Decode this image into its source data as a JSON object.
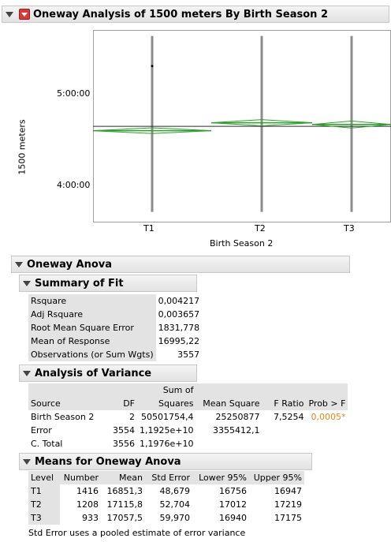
{
  "report": {
    "title": "Oneway Analysis of 1500 meters By Birth Season 2"
  },
  "chart_data": {
    "type": "scatter",
    "ylabel": "1500 meters",
    "xlabel": "Birth Season 2",
    "categories": [
      "T1",
      "T2",
      "T3"
    ],
    "y_ticks": [
      "5:00:00",
      "4:00:00"
    ],
    "ylim_seconds": [
      13800,
      20200
    ],
    "tick_values_seconds": [
      18000,
      14400
    ],
    "grand_mean": 16995.22,
    "means": [
      16851.3,
      17115.8,
      17057.5
    ],
    "ci_lower": [
      16756,
      17012,
      16940
    ],
    "ci_upper": [
      16947,
      17219,
      17175
    ],
    "point_color": "#2e9e2e"
  },
  "anova": {
    "title": "Oneway Anova",
    "summary_of_fit": {
      "title": "Summary of Fit",
      "rows": [
        {
          "label": "Rsquare",
          "value": "0,004217"
        },
        {
          "label": "Adj Rsquare",
          "value": "0,003657"
        },
        {
          "label": "Root Mean Square Error",
          "value": "1831,778"
        },
        {
          "label": "Mean of Response",
          "value": "16995,22"
        },
        {
          "label": "Observations (or Sum Wgts)",
          "value": "3557"
        }
      ]
    },
    "analysis_of_variance": {
      "title": "Analysis of Variance",
      "headers": {
        "source": "Source",
        "df": "DF",
        "ss_top": "Sum of",
        "ss_bottom": "Squares",
        "ms": "Mean Square",
        "f": "F Ratio",
        "p": "Prob > F"
      },
      "rows": [
        {
          "source": "Birth Season 2",
          "df": "2",
          "ss": "50501754,4",
          "ms": "25250877",
          "f": "7,5254",
          "p": "0,0005*"
        },
        {
          "source": "Error",
          "df": "3554",
          "ss": "1,1925e+10",
          "ms": "3355412,1",
          "f": "",
          "p": ""
        },
        {
          "source": "C. Total",
          "df": "3556",
          "ss": "1,1976e+10",
          "ms": "",
          "f": "",
          "p": ""
        }
      ],
      "p_color": "#e08a1e"
    },
    "means": {
      "title": "Means for Oneway Anova",
      "headers": {
        "level": "Level",
        "number": "Number",
        "mean": "Mean",
        "se": "Std Error",
        "lower": "Lower 95%",
        "upper": "Upper 95%"
      },
      "rows": [
        {
          "level": "T1",
          "number": "1416",
          "mean": "16851,3",
          "se": "48,679",
          "lower": "16756",
          "upper": "16947"
        },
        {
          "level": "T2",
          "number": "1208",
          "mean": "17115,8",
          "se": "52,704",
          "lower": "17012",
          "upper": "17219"
        },
        {
          "level": "T3",
          "number": "933",
          "mean": "17057,5",
          "se": "59,970",
          "lower": "16940",
          "upper": "17175"
        }
      ],
      "footnote": "Std Error uses a pooled estimate of error variance"
    }
  }
}
